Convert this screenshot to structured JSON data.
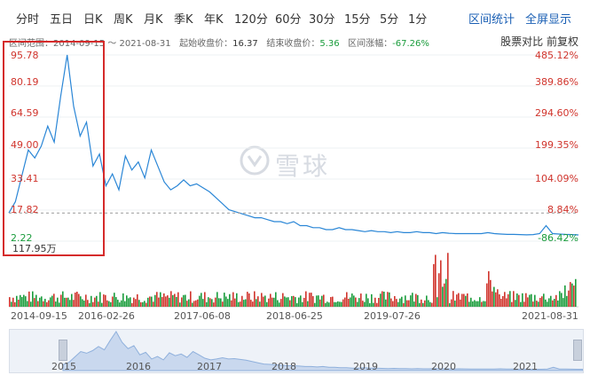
{
  "tabs": [
    "分时",
    "五日",
    "日K",
    "周K",
    "月K",
    "季K",
    "年K",
    "120分",
    "60分",
    "30分",
    "15分",
    "5分",
    "1分"
  ],
  "right_links": [
    "区间统计",
    "全屏显示"
  ],
  "info": {
    "range_label": "区间范围：",
    "range_value": "2014-09-15 ～ 2021-08-31",
    "start_label": "起始收盘价：",
    "start_value": "16.37",
    "end_label": "结束收盘价：",
    "end_value": "5.36",
    "change_label": "区间涨幅：",
    "change_value": "-67.26%"
  },
  "options": "股票对比  前复权",
  "y_left": [
    "95.78",
    "80.19",
    "64.59",
    "49.00",
    "33.41",
    "17.82",
    "2.22"
  ],
  "y_right": [
    "485.12%",
    "389.86%",
    "294.60%",
    "199.35%",
    "104.09%",
    "8.84%",
    "-86.42%"
  ],
  "volume_label": "117.95万",
  "dates": [
    "2014-09-15",
    "2016-02-26",
    "2017-06-08",
    "2018-06-25",
    "2019-07-26",
    "2021-08-31"
  ],
  "nav_years": [
    "2015",
    "2016",
    "2017",
    "2018",
    "2019",
    "2020",
    "2021"
  ],
  "watermark": "雪球",
  "colors": {
    "line": "#2a86d6",
    "up": "#d0342c",
    "down": "#1a9c3c",
    "accent": "#1a5fb4"
  },
  "chart_data": {
    "type": "line",
    "y_ticks_left": [
      95.78,
      80.19,
      64.59,
      49.0,
      33.41,
      17.82,
      2.22
    ],
    "y_ticks_right_pct": [
      485.12,
      389.86,
      294.6,
      199.35,
      104.09,
      8.84,
      -86.42
    ],
    "x_ticks": [
      "2014-09-15",
      "2016-02-26",
      "2017-06-08",
      "2018-06-25",
      "2019-07-26",
      "2021-08-31"
    ],
    "ylim": [
      2.22,
      95.78
    ],
    "series": [
      {
        "values": [
          16.37,
          22,
          35,
          48,
          44,
          50,
          60,
          52,
          75,
          95.78,
          70,
          55,
          62,
          40,
          46,
          30,
          36,
          28,
          45,
          38,
          42,
          34,
          48,
          40,
          32,
          28,
          30,
          33,
          30,
          31,
          29,
          27,
          24,
          21,
          18,
          17,
          16,
          15,
          14,
          14,
          13,
          12,
          12,
          11,
          12,
          10,
          10,
          9,
          9,
          8,
          8,
          9,
          8,
          8,
          7.5,
          7,
          7.5,
          7,
          7,
          6.5,
          7,
          6.5,
          6.5,
          7,
          6.5,
          6.5,
          6,
          6.5,
          6.2,
          6,
          6,
          6,
          6,
          6,
          6.5,
          6,
          5.8,
          5.6,
          5.6,
          5.5,
          5.4,
          5.5,
          6,
          10,
          6,
          5.8,
          5.6,
          5.5,
          5.36
        ]
      }
    ]
  }
}
